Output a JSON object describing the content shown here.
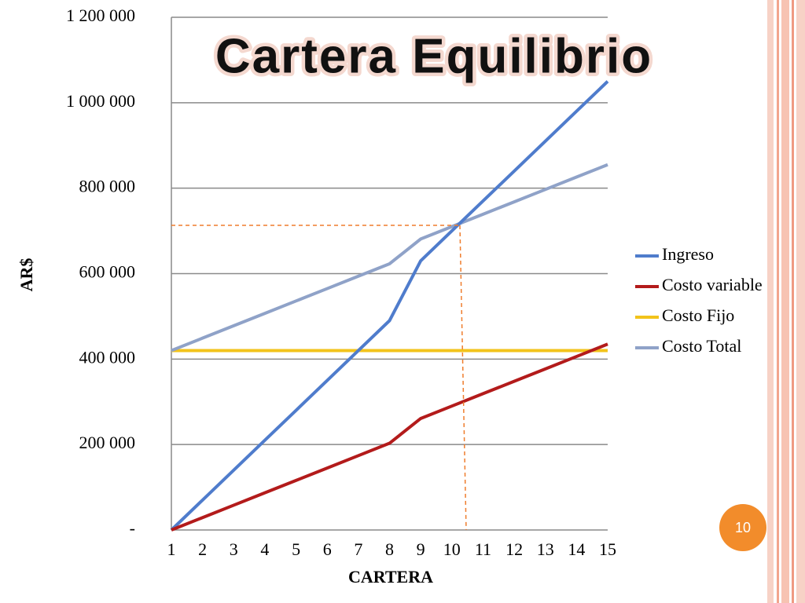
{
  "chart_data": {
    "type": "line",
    "title": "Cartera Equilibrio",
    "x_label": "CARTERA",
    "y_label": "AR$",
    "x": [
      1,
      2,
      3,
      4,
      5,
      6,
      7,
      8,
      9,
      10,
      11,
      12,
      13,
      14,
      15
    ],
    "xlim": [
      1,
      15
    ],
    "xticks": [
      1,
      2,
      3,
      4,
      5,
      6,
      7,
      8,
      9,
      10,
      11,
      12,
      13,
      14,
      15
    ],
    "ylim": [
      0,
      1200000
    ],
    "yticks": [
      {
        "value": 0,
        "label": "-"
      },
      {
        "value": 200000,
        "label": "200 000"
      },
      {
        "value": 400000,
        "label": "400 000"
      },
      {
        "value": 600000,
        "label": "600 000"
      },
      {
        "value": 800000,
        "label": "800 000"
      },
      {
        "value": 1000000,
        "label": "1 000 000"
      },
      {
        "value": 1200000,
        "label": "1 200 000"
      }
    ],
    "grid": true,
    "legend": "right",
    "series": [
      {
        "name": "Ingreso",
        "color": "#4f7ccc",
        "values": [
          0,
          70000,
          140000,
          210000,
          280000,
          350000,
          420000,
          490000,
          630000,
          700000,
          770000,
          840000,
          910000,
          980000,
          1050000
        ]
      },
      {
        "name": "Costo variable",
        "color": "#b31b1b",
        "values": [
          0,
          29000,
          58000,
          87000,
          116000,
          145000,
          174000,
          203000,
          261000,
          290000,
          319000,
          348000,
          377000,
          406000,
          435000
        ]
      },
      {
        "name": "Costo Fijo",
        "color": "#f2c31b",
        "values": [
          420000,
          420000,
          420000,
          420000,
          420000,
          420000,
          420000,
          420000,
          420000,
          420000,
          420000,
          420000,
          420000,
          420000,
          420000
        ]
      },
      {
        "name": "Costo Total",
        "color": "#8fa2c8",
        "values": [
          420000,
          449000,
          478000,
          507000,
          536000,
          565000,
          594000,
          623000,
          681000,
          710000,
          739000,
          768000,
          797000,
          826000,
          855000
        ]
      }
    ]
  },
  "page_number": "10"
}
